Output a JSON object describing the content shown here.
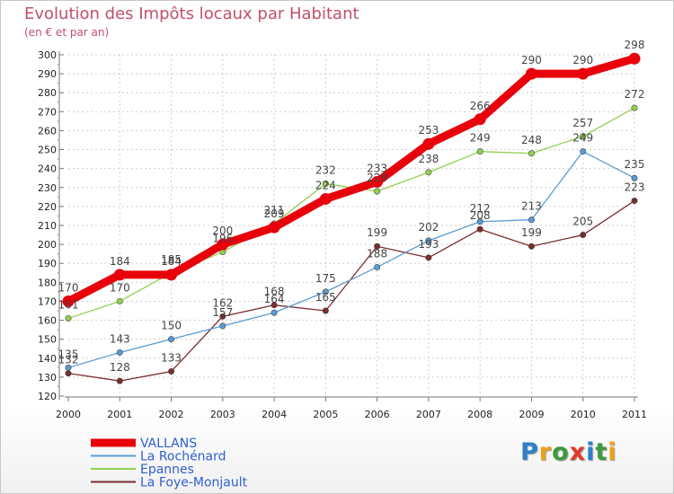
{
  "header": {
    "title": "Evolution des Impôts locaux par Habitant",
    "subtitle": "(en € et par an)"
  },
  "brand": {
    "text": "Proxiti",
    "letter_colors": [
      "#2f7fc9",
      "#f0a018",
      "#3d9a3d",
      "#e23a2a",
      "#2f7fc9",
      "#3d9a3d",
      "#f0a018"
    ]
  },
  "colors": {
    "title": "#c0506a",
    "legend_text": "#2f5fcf",
    "grid": "#cfcfcf"
  },
  "chart_data": {
    "type": "line",
    "title": "Evolution des Impôts locaux par Habitant",
    "subtitle": "(en € et par an)",
    "xlabel": "",
    "ylabel": "",
    "categories": [
      "2000",
      "2001",
      "2002",
      "2003",
      "2004",
      "2005",
      "2006",
      "2007",
      "2008",
      "2009",
      "2010",
      "2011"
    ],
    "ylim": [
      120,
      300
    ],
    "yticks": [
      120,
      130,
      140,
      150,
      160,
      170,
      180,
      190,
      200,
      210,
      220,
      230,
      240,
      250,
      260,
      270,
      280,
      290,
      300
    ],
    "grid": true,
    "legend_position": "bottom-left",
    "series": [
      {
        "name": "VALLANS",
        "color": "#e8000b",
        "values": [
          170,
          184,
          184,
          200,
          209,
          224,
          233,
          253,
          266,
          290,
          290,
          298
        ]
      },
      {
        "name": "La Rochénard",
        "color": "#5b9bd5",
        "values": [
          135,
          143,
          150,
          157,
          164,
          175,
          188,
          202,
          212,
          213,
          249,
          235
        ]
      },
      {
        "name": "Epannes",
        "color": "#92d050",
        "values": [
          161,
          170,
          185,
          196,
          211,
          232,
          228,
          238,
          249,
          248,
          257,
          272
        ]
      },
      {
        "name": "La Foye-Monjault",
        "color": "#7b2d2d",
        "values": [
          132,
          128,
          133,
          162,
          168,
          165,
          199,
          193,
          208,
          199,
          205,
          223
        ]
      }
    ]
  }
}
